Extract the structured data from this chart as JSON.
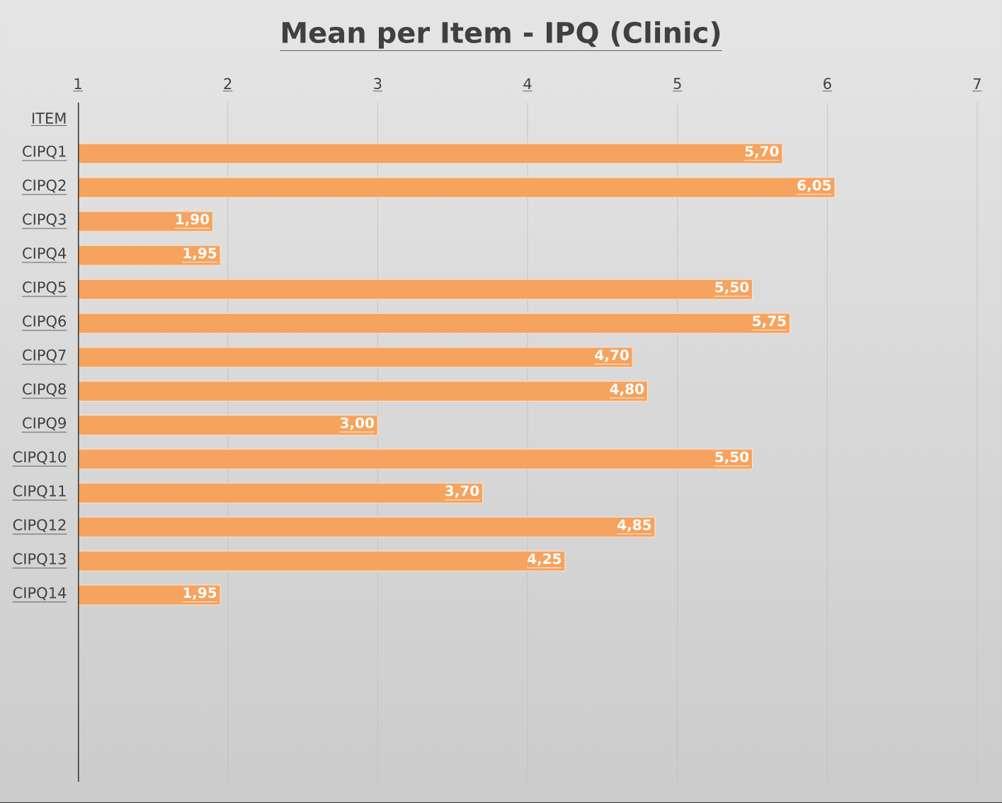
{
  "chart_data": {
    "type": "bar",
    "orientation": "horizontal",
    "title": "Mean per Item - IPQ (Clinic)",
    "categories": [
      "ITEM",
      "CIPQ1",
      "CIPQ2",
      "CIPQ3",
      "CIPQ4",
      "CIPQ5",
      "CIPQ6",
      "CIPQ7",
      "CIPQ8",
      "CIPQ9",
      "CIPQ10",
      "CIPQ11",
      "CIPQ12",
      "CIPQ13",
      "CIPQ14",
      null,
      null,
      null,
      null,
      null
    ],
    "values": [
      null,
      5.7,
      6.05,
      1.9,
      1.95,
      5.5,
      5.75,
      4.7,
      4.8,
      3.0,
      5.5,
      3.7,
      4.85,
      4.25,
      1.95,
      null,
      null,
      null,
      null,
      null
    ],
    "value_labels": [
      null,
      "5,70",
      "6,05",
      "1,90",
      "1,95",
      "5,50",
      "5,75",
      "4,70",
      "4,80",
      "3,00",
      "5,50",
      "3,70",
      "4,85",
      "4,25",
      "1,95",
      null,
      null,
      null,
      null,
      null
    ],
    "color": "#f5a35e",
    "xlim": [
      1,
      7
    ],
    "xticks": [
      1,
      2,
      3,
      4,
      5,
      6,
      7
    ],
    "grid": "x"
  }
}
